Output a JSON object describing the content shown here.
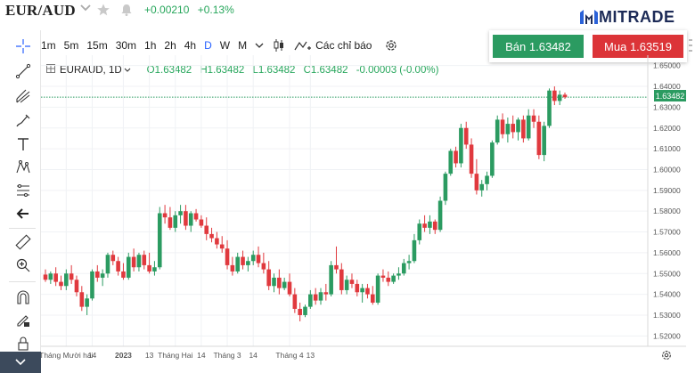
{
  "header": {
    "pair": "EUR/AUD",
    "change_abs": "+0.00210",
    "change_pct": "+0.13%",
    "logo_text": "MITRADE"
  },
  "toolbar": {
    "timeframes": [
      "1m",
      "5m",
      "15m",
      "30m",
      "1h",
      "2h",
      "4h",
      "D",
      "W",
      "M"
    ],
    "active_timeframe": "D",
    "indicators_label": "Các chỉ báo"
  },
  "legend": {
    "symbol": "EURAUD, 1D",
    "open": "O1.63482",
    "high": "H1.63482",
    "low": "L1.63482",
    "close": "C1.63482",
    "change": "-0.00003 (-0.00%)"
  },
  "trade": {
    "sell_label": "Bán 1.63482",
    "buy_label": "Mua 1.63519"
  },
  "colors": {
    "up": "#2b9b61",
    "down": "#e0393e",
    "accent": "#2962ff",
    "grid": "#f0f2f5"
  },
  "icons": [
    "crosshair-icon",
    "trendline-icon",
    "pitchfork-icon",
    "brush-icon",
    "text-icon",
    "pattern-icon",
    "fib-icon",
    "arrow-left-icon",
    "ruler-icon",
    "zoom-icon",
    "magnet-icon",
    "pencil-lock-icon",
    "lock-icon",
    "star-icon",
    "bell-icon",
    "candles-icon",
    "indicators-icon",
    "gear-icon",
    "chevron-down-icon"
  ],
  "chart_data": {
    "type": "candlestick",
    "ylim": [
      1.515,
      1.655
    ],
    "current_price": 1.63482,
    "current_price_label": "1.63482",
    "y_ticks": [
      "1.65000",
      "1.64000",
      "1.63000",
      "1.62000",
      "1.61000",
      "1.60000",
      "1.59000",
      "1.58000",
      "1.57000",
      "1.56000",
      "1.55000",
      "1.54000",
      "1.53000",
      "1.52000"
    ],
    "x_labels": [
      {
        "label": "Tháng Mười hai",
        "index": 4,
        "bold": false
      },
      {
        "label": "14",
        "index": 9,
        "bold": false
      },
      {
        "label": "2023",
        "index": 15,
        "bold": true
      },
      {
        "label": "13",
        "index": 20,
        "bold": false
      },
      {
        "label": "Tháng Hai",
        "index": 25,
        "bold": false
      },
      {
        "label": "14",
        "index": 30,
        "bold": false
      },
      {
        "label": "Tháng 3",
        "index": 35,
        "bold": false
      },
      {
        "label": "14",
        "index": 40,
        "bold": false
      },
      {
        "label": "Tháng 4",
        "index": 47,
        "bold": false
      },
      {
        "label": "13",
        "index": 51,
        "bold": false
      }
    ],
    "candles": [
      [
        1.5495,
        1.552,
        1.546,
        1.547
      ],
      [
        1.547,
        1.551,
        1.545,
        1.55
      ],
      [
        1.55,
        1.553,
        1.544,
        1.546
      ],
      [
        1.546,
        1.549,
        1.542,
        1.544
      ],
      [
        1.544,
        1.552,
        1.542,
        1.55
      ],
      [
        1.55,
        1.554,
        1.545,
        1.547
      ],
      [
        1.547,
        1.549,
        1.539,
        1.541
      ],
      [
        1.541,
        1.544,
        1.532,
        1.534
      ],
      [
        1.534,
        1.54,
        1.53,
        1.538
      ],
      [
        1.538,
        1.552,
        1.537,
        1.551
      ],
      [
        1.551,
        1.554,
        1.546,
        1.548
      ],
      [
        1.548,
        1.552,
        1.544,
        1.55
      ],
      [
        1.55,
        1.56,
        1.548,
        1.559
      ],
      [
        1.559,
        1.561,
        1.554,
        1.556
      ],
      [
        1.556,
        1.558,
        1.549,
        1.551
      ],
      [
        1.551,
        1.555,
        1.547,
        1.548
      ],
      [
        1.548,
        1.56,
        1.547,
        1.558
      ],
      [
        1.558,
        1.562,
        1.551,
        1.553
      ],
      [
        1.553,
        1.56,
        1.551,
        1.559
      ],
      [
        1.559,
        1.561,
        1.552,
        1.554
      ],
      [
        1.554,
        1.56,
        1.55,
        1.551
      ],
      [
        1.551,
        1.556,
        1.549,
        1.553
      ],
      [
        1.553,
        1.582,
        1.552,
        1.579
      ],
      [
        1.579,
        1.583,
        1.574,
        1.577
      ],
      [
        1.577,
        1.582,
        1.571,
        1.572
      ],
      [
        1.572,
        1.58,
        1.57,
        1.578
      ],
      [
        1.578,
        1.583,
        1.574,
        1.58
      ],
      [
        1.58,
        1.583,
        1.571,
        1.573
      ],
      [
        1.573,
        1.58,
        1.57,
        1.579
      ],
      [
        1.579,
        1.581,
        1.575,
        1.576
      ],
      [
        1.576,
        1.578,
        1.572,
        1.573
      ],
      [
        1.573,
        1.577,
        1.566,
        1.569
      ],
      [
        1.569,
        1.572,
        1.565,
        1.567
      ],
      [
        1.567,
        1.57,
        1.562,
        1.564
      ],
      [
        1.564,
        1.568,
        1.56,
        1.562
      ],
      [
        1.562,
        1.566,
        1.552,
        1.554
      ],
      [
        1.554,
        1.558,
        1.549,
        1.551
      ],
      [
        1.551,
        1.56,
        1.55,
        1.558
      ],
      [
        1.558,
        1.561,
        1.552,
        1.554
      ],
      [
        1.554,
        1.558,
        1.551,
        1.556
      ],
      [
        1.556,
        1.561,
        1.554,
        1.559
      ],
      [
        1.559,
        1.563,
        1.553,
        1.555
      ],
      [
        1.555,
        1.56,
        1.55,
        1.552
      ],
      [
        1.552,
        1.556,
        1.542,
        1.544
      ],
      [
        1.544,
        1.55,
        1.541,
        1.548
      ],
      [
        1.548,
        1.552,
        1.54,
        1.543
      ],
      [
        1.543,
        1.548,
        1.542,
        1.546
      ],
      [
        1.546,
        1.55,
        1.539,
        1.54
      ],
      [
        1.54,
        1.543,
        1.531,
        1.533
      ],
      [
        1.533,
        1.536,
        1.527,
        1.53
      ],
      [
        1.53,
        1.535,
        1.529,
        1.534
      ],
      [
        1.534,
        1.542,
        1.533,
        1.54
      ],
      [
        1.54,
        1.543,
        1.535,
        1.537
      ],
      [
        1.537,
        1.543,
        1.535,
        1.541
      ],
      [
        1.541,
        1.545,
        1.537,
        1.54
      ],
      [
        1.54,
        1.556,
        1.539,
        1.554
      ],
      [
        1.554,
        1.563,
        1.55,
        1.552
      ],
      [
        1.552,
        1.555,
        1.54,
        1.542
      ],
      [
        1.542,
        1.549,
        1.54,
        1.547
      ],
      [
        1.547,
        1.55,
        1.543,
        1.545
      ],
      [
        1.545,
        1.547,
        1.539,
        1.541
      ],
      [
        1.541,
        1.545,
        1.536,
        1.543
      ],
      [
        1.543,
        1.545,
        1.538,
        1.54
      ],
      [
        1.54,
        1.544,
        1.535,
        1.536
      ],
      [
        1.536,
        1.55,
        1.535,
        1.549
      ],
      [
        1.549,
        1.552,
        1.546,
        1.548
      ],
      [
        1.548,
        1.551,
        1.544,
        1.546
      ],
      [
        1.546,
        1.55,
        1.545,
        1.549
      ],
      [
        1.549,
        1.553,
        1.547,
        1.55
      ],
      [
        1.55,
        1.557,
        1.549,
        1.555
      ],
      [
        1.555,
        1.559,
        1.552,
        1.556
      ],
      [
        1.556,
        1.569,
        1.555,
        1.566
      ],
      [
        1.566,
        1.576,
        1.564,
        1.574
      ],
      [
        1.574,
        1.578,
        1.57,
        1.572
      ],
      [
        1.572,
        1.578,
        1.569,
        1.575
      ],
      [
        1.575,
        1.576,
        1.569,
        1.571
      ],
      [
        1.571,
        1.587,
        1.57,
        1.585
      ],
      [
        1.585,
        1.599,
        1.583,
        1.598
      ],
      [
        1.598,
        1.61,
        1.597,
        1.609
      ],
      [
        1.609,
        1.611,
        1.601,
        1.603
      ],
      [
        1.603,
        1.622,
        1.601,
        1.62
      ],
      [
        1.62,
        1.623,
        1.61,
        1.612
      ],
      [
        1.612,
        1.615,
        1.596,
        1.598
      ],
      [
        1.598,
        1.605,
        1.588,
        1.59
      ],
      [
        1.59,
        1.595,
        1.587,
        1.593
      ],
      [
        1.593,
        1.599,
        1.59,
        1.597
      ],
      [
        1.597,
        1.614,
        1.596,
        1.613
      ],
      [
        1.613,
        1.626,
        1.612,
        1.624
      ],
      [
        1.624,
        1.627,
        1.615,
        1.617
      ],
      [
        1.617,
        1.625,
        1.613,
        1.622
      ],
      [
        1.622,
        1.626,
        1.615,
        1.618
      ],
      [
        1.618,
        1.625,
        1.614,
        1.624
      ],
      [
        1.624,
        1.626,
        1.613,
        1.615
      ],
      [
        1.615,
        1.629,
        1.614,
        1.626
      ],
      [
        1.626,
        1.629,
        1.62,
        1.623
      ],
      [
        1.623,
        1.626,
        1.605,
        1.607
      ],
      [
        1.607,
        1.623,
        1.604,
        1.621
      ],
      [
        1.621,
        1.639,
        1.62,
        1.638
      ],
      [
        1.638,
        1.64,
        1.631,
        1.633
      ],
      [
        1.633,
        1.638,
        1.631,
        1.636
      ],
      [
        1.636,
        1.637,
        1.634,
        1.6348
      ]
    ]
  }
}
